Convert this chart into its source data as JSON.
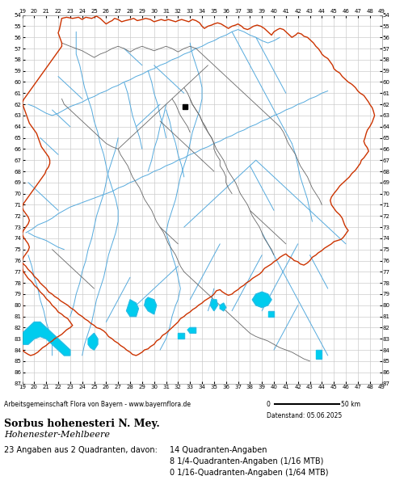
{
  "title": "Sorbus hohenesteri N. Mey.",
  "subtitle": "Hohenester-Mehlbeere",
  "attribution": "Arbeitsgemeinschaft Flora von Bayern - www.bayernflora.de",
  "date_label": "Datenstand: 05.06.2025",
  "stats_line1": "23 Angaben aus 2 Quadranten, davon:",
  "stats_col1_line1": "14 Quadranten-Angaben",
  "stats_col1_line2": "8 1/4-Quadranten-Angaben (1/16 MTB)",
  "stats_col1_line3": "0 1/16-Quadranten-Angaben (1/64 MTB)",
  "x_ticks": [
    19,
    20,
    21,
    22,
    23,
    24,
    25,
    26,
    27,
    28,
    29,
    30,
    31,
    32,
    33,
    34,
    35,
    36,
    37,
    38,
    39,
    40,
    41,
    42,
    43,
    44,
    45,
    46,
    47,
    48,
    49
  ],
  "y_ticks": [
    54,
    55,
    56,
    57,
    58,
    59,
    60,
    61,
    62,
    63,
    64,
    65,
    66,
    67,
    68,
    69,
    70,
    71,
    72,
    73,
    74,
    75,
    76,
    77,
    78,
    79,
    80,
    81,
    82,
    83,
    84,
    85,
    86,
    87
  ],
  "x_min": 19,
  "x_max": 49,
  "y_min": 54,
  "y_max": 87,
  "grid_color": "#cccccc",
  "bg_color": "#ffffff",
  "outer_border_color": "#cc3300",
  "inner_border_color": "#666666",
  "river_color": "#55aadd",
  "lake_color": "#00ccee",
  "marker_x": 32.6,
  "marker_y": 62.2,
  "marker_size": 4,
  "marker_color": "#000000"
}
